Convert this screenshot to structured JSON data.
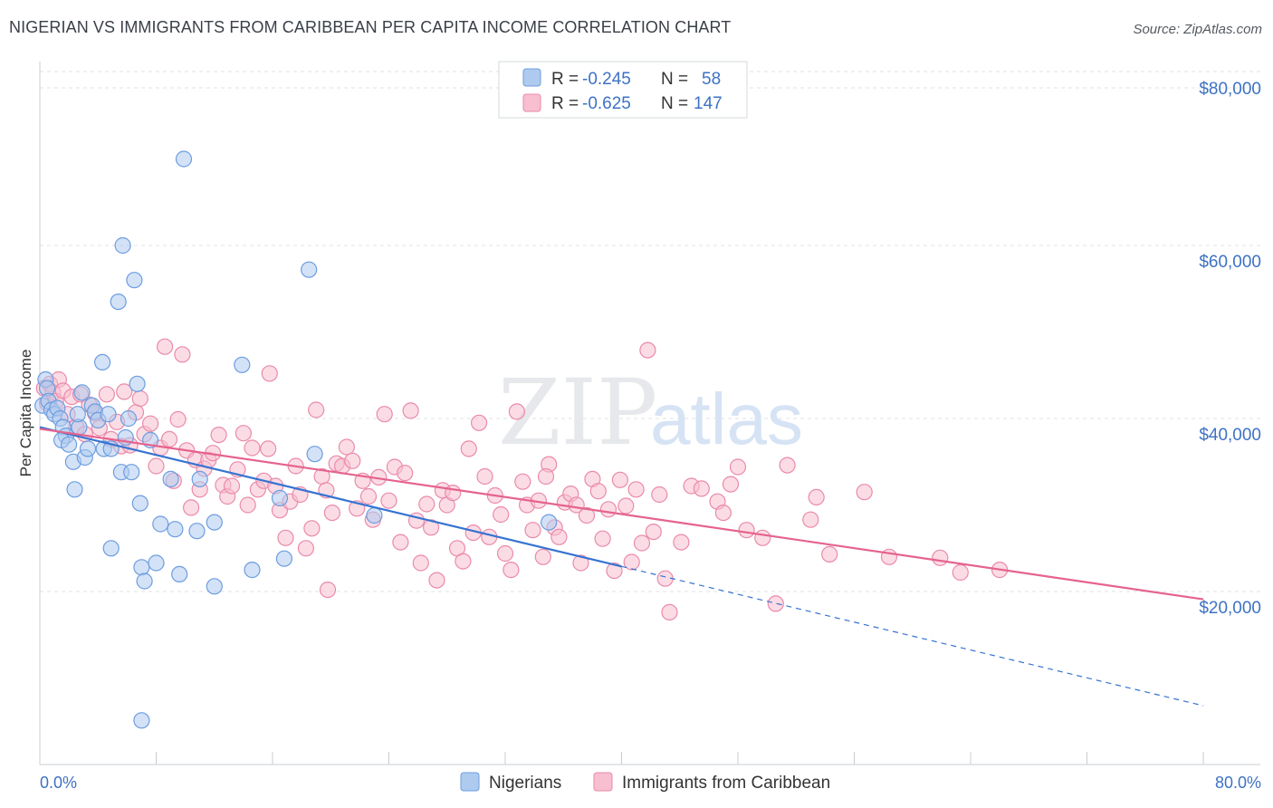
{
  "header": {
    "title": "NIGERIAN VS IMMIGRANTS FROM CARIBBEAN PER CAPITA INCOME CORRELATION CHART",
    "source": "Source: ZipAtlas.com"
  },
  "watermark": {
    "zip": "ZIP",
    "atlas": "atlas"
  },
  "colors": {
    "blue_fill": "#aecbef",
    "blue_stroke": "#6d9de0",
    "blue_line": "#3673d1",
    "pink_fill": "#f7bfd0",
    "pink_stroke": "#ea8aaa",
    "pink_line": "#e5638e",
    "grid": "#dde0e6",
    "tick_text": "#3d72c4"
  },
  "stats": {
    "series1": {
      "r_label": "R =",
      "r_value": "-0.245",
      "n_label": "N =",
      "n_value": "58"
    },
    "series2": {
      "r_label": "R =",
      "r_value": "-0.625",
      "n_label": "N =",
      "n_value": "147"
    }
  },
  "legend": {
    "series1": "Nigerians",
    "series2": "Immigrants from Caribbean"
  },
  "chart_data": {
    "type": "scatter",
    "title": "NIGERIAN VS IMMIGRANTS FROM CARIBBEAN PER CAPITA INCOME CORRELATION CHART",
    "xlabel": "",
    "ylabel": "Per Capita Income",
    "xlim": [
      0,
      80
    ],
    "ylim": [
      0,
      82000
    ],
    "x_tick_labels": [
      "0.0%",
      "80.0%"
    ],
    "y_ticks": [
      20000,
      40000,
      60000,
      80000
    ],
    "y_tick_labels": [
      "$20,000",
      "$40,000",
      "$60,000",
      "$80,000"
    ],
    "grid": true,
    "series": [
      {
        "name": "Nigerians",
        "r": -0.245,
        "n": 58,
        "trend": {
          "x0": 0,
          "y0": 39000,
          "x1": 80,
          "y1": 6800,
          "solid_until_x": 40
        },
        "points": [
          [
            0.2,
            41500
          ],
          [
            0.4,
            44500
          ],
          [
            0.5,
            43500
          ],
          [
            0.6,
            42000
          ],
          [
            0.8,
            41000
          ],
          [
            1.0,
            40500
          ],
          [
            1.2,
            41200
          ],
          [
            1.4,
            40000
          ],
          [
            1.6,
            39000
          ],
          [
            1.8,
            38000
          ],
          [
            1.5,
            37500
          ],
          [
            2.0,
            37000
          ],
          [
            2.3,
            35000
          ],
          [
            2.4,
            31800
          ],
          [
            2.7,
            39000
          ],
          [
            2.9,
            43000
          ],
          [
            3.1,
            35500
          ],
          [
            3.3,
            36500
          ],
          [
            2.6,
            40500
          ],
          [
            3.6,
            41500
          ],
          [
            3.8,
            40800
          ],
          [
            4.0,
            39800
          ],
          [
            4.3,
            46500
          ],
          [
            4.7,
            40500
          ],
          [
            4.4,
            36500
          ],
          [
            4.9,
            36500
          ],
          [
            5.4,
            53500
          ],
          [
            5.6,
            33800
          ],
          [
            5.9,
            37800
          ],
          [
            6.1,
            40000
          ],
          [
            6.3,
            33800
          ],
          [
            6.5,
            56000
          ],
          [
            6.7,
            44000
          ],
          [
            6.9,
            30200
          ],
          [
            7.0,
            22800
          ],
          [
            7.2,
            21200
          ],
          [
            7.6,
            37500
          ],
          [
            8.0,
            23300
          ],
          [
            8.3,
            27800
          ],
          [
            5.7,
            60000
          ],
          [
            4.9,
            25000
          ],
          [
            9.0,
            33000
          ],
          [
            9.3,
            27200
          ],
          [
            9.6,
            22000
          ],
          [
            9.9,
            70000
          ],
          [
            10.8,
            27000
          ],
          [
            11.0,
            33000
          ],
          [
            12.0,
            28000
          ],
          [
            12.0,
            20600
          ],
          [
            13.9,
            46200
          ],
          [
            14.6,
            22500
          ],
          [
            16.5,
            30800
          ],
          [
            16.8,
            23800
          ],
          [
            18.5,
            57200
          ],
          [
            18.9,
            35900
          ],
          [
            23.0,
            28800
          ],
          [
            35.0,
            28000
          ],
          [
            7.0,
            5100
          ]
        ]
      },
      {
        "name": "Immigrants from Caribbean",
        "r": -0.625,
        "n": 147,
        "trend": {
          "x0": 0,
          "y0": 38800,
          "x1": 80,
          "y1": 19100
        },
        "points": [
          [
            0.3,
            43500
          ],
          [
            0.5,
            41800
          ],
          [
            0.7,
            44000
          ],
          [
            0.9,
            43000
          ],
          [
            1.1,
            42000
          ],
          [
            1.3,
            44500
          ],
          [
            1.6,
            43200
          ],
          [
            1.9,
            40500
          ],
          [
            2.2,
            42500
          ],
          [
            2.5,
            39000
          ],
          [
            2.8,
            42800
          ],
          [
            3.1,
            38200
          ],
          [
            3.4,
            41600
          ],
          [
            3.8,
            40600
          ],
          [
            4.1,
            38900
          ],
          [
            4.6,
            42800
          ],
          [
            4.9,
            37600
          ],
          [
            5.3,
            39600
          ],
          [
            5.6,
            36800
          ],
          [
            5.8,
            43100
          ],
          [
            6.2,
            36900
          ],
          [
            6.6,
            40700
          ],
          [
            6.9,
            42300
          ],
          [
            7.2,
            38200
          ],
          [
            7.6,
            39400
          ],
          [
            8.0,
            34500
          ],
          [
            8.3,
            36600
          ],
          [
            8.6,
            48300
          ],
          [
            8.9,
            37600
          ],
          [
            9.2,
            32800
          ],
          [
            9.5,
            39900
          ],
          [
            9.8,
            47400
          ],
          [
            10.1,
            36300
          ],
          [
            10.4,
            29700
          ],
          [
            10.7,
            35200
          ],
          [
            11.0,
            31800
          ],
          [
            11.3,
            34200
          ],
          [
            11.6,
            35200
          ],
          [
            11.9,
            36000
          ],
          [
            12.3,
            38100
          ],
          [
            12.6,
            32300
          ],
          [
            12.9,
            31000
          ],
          [
            13.2,
            32200
          ],
          [
            13.6,
            34100
          ],
          [
            14.0,
            38300
          ],
          [
            14.3,
            30000
          ],
          [
            14.6,
            36600
          ],
          [
            15.0,
            31800
          ],
          [
            15.4,
            32800
          ],
          [
            15.7,
            36500
          ],
          [
            15.8,
            45200
          ],
          [
            16.2,
            32200
          ],
          [
            16.5,
            29400
          ],
          [
            16.9,
            26200
          ],
          [
            17.2,
            30400
          ],
          [
            17.6,
            34500
          ],
          [
            17.9,
            31200
          ],
          [
            18.3,
            25000
          ],
          [
            18.7,
            27300
          ],
          [
            19.0,
            41000
          ],
          [
            19.4,
            33300
          ],
          [
            19.7,
            31700
          ],
          [
            20.1,
            29100
          ],
          [
            20.4,
            34800
          ],
          [
            20.8,
            34500
          ],
          [
            21.1,
            36700
          ],
          [
            21.5,
            35100
          ],
          [
            21.8,
            29600
          ],
          [
            22.2,
            32800
          ],
          [
            22.6,
            31000
          ],
          [
            22.9,
            28300
          ],
          [
            23.3,
            33200
          ],
          [
            23.7,
            40500
          ],
          [
            24.0,
            30500
          ],
          [
            24.4,
            34400
          ],
          [
            24.8,
            25700
          ],
          [
            25.1,
            33700
          ],
          [
            25.5,
            40900
          ],
          [
            25.9,
            28200
          ],
          [
            26.2,
            23300
          ],
          [
            26.6,
            30100
          ],
          [
            26.9,
            27400
          ],
          [
            27.3,
            21300
          ],
          [
            27.7,
            31700
          ],
          [
            28.0,
            30000
          ],
          [
            28.4,
            31400
          ],
          [
            28.7,
            25000
          ],
          [
            29.1,
            23500
          ],
          [
            29.5,
            36500
          ],
          [
            29.8,
            26800
          ],
          [
            30.2,
            39500
          ],
          [
            30.6,
            33300
          ],
          [
            30.9,
            26300
          ],
          [
            31.3,
            31100
          ],
          [
            31.7,
            28900
          ],
          [
            32.0,
            24400
          ],
          [
            32.4,
            22500
          ],
          [
            32.8,
            40800
          ],
          [
            33.2,
            32700
          ],
          [
            33.5,
            30000
          ],
          [
            33.9,
            27100
          ],
          [
            34.3,
            30500
          ],
          [
            34.6,
            24000
          ],
          [
            35.0,
            34700
          ],
          [
            35.4,
            27400
          ],
          [
            35.7,
            26300
          ],
          [
            36.1,
            30300
          ],
          [
            36.5,
            31300
          ],
          [
            36.9,
            30000
          ],
          [
            37.2,
            23300
          ],
          [
            37.6,
            28800
          ],
          [
            38.0,
            33000
          ],
          [
            38.4,
            31600
          ],
          [
            38.7,
            26100
          ],
          [
            39.1,
            29500
          ],
          [
            39.5,
            22400
          ],
          [
            39.9,
            32900
          ],
          [
            40.3,
            29900
          ],
          [
            40.7,
            23400
          ],
          [
            41.0,
            31800
          ],
          [
            41.4,
            25600
          ],
          [
            41.8,
            47900
          ],
          [
            42.2,
            26900
          ],
          [
            42.6,
            31200
          ],
          [
            43.0,
            21500
          ],
          [
            43.3,
            17600
          ],
          [
            44.1,
            25700
          ],
          [
            44.8,
            32200
          ],
          [
            45.5,
            31900
          ],
          [
            46.6,
            30400
          ],
          [
            47.0,
            29100
          ],
          [
            47.5,
            32400
          ],
          [
            48.0,
            34400
          ],
          [
            48.6,
            27100
          ],
          [
            49.7,
            26200
          ],
          [
            50.6,
            18600
          ],
          [
            51.4,
            34600
          ],
          [
            53.0,
            28300
          ],
          [
            53.4,
            30900
          ],
          [
            54.3,
            24300
          ],
          [
            56.7,
            31500
          ],
          [
            58.4,
            24000
          ],
          [
            61.9,
            23900
          ],
          [
            63.3,
            22200
          ],
          [
            66.0,
            22500
          ],
          [
            19.8,
            20200
          ],
          [
            34.8,
            33300
          ]
        ]
      }
    ]
  }
}
